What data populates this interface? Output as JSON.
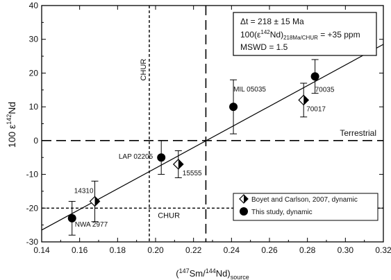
{
  "chart_data": {
    "type": "scatter",
    "title": "",
    "xlabel_parts": {
      "open": "(",
      "sup1": "147",
      "mid": "Sm/",
      "sup2": "144",
      "close": "Nd)",
      "sub": "source"
    },
    "ylabel_parts": {
      "prefix": "100 ε",
      "sup": "142",
      "suffix": "Nd"
    },
    "xlim": [
      0.14,
      0.32
    ],
    "ylim": [
      -30,
      40
    ],
    "xticks": [
      "0.14",
      "0.16",
      "0.18",
      "0.20",
      "0.22",
      "0.24",
      "0.26",
      "0.28",
      "0.30",
      "0.32"
    ],
    "yticks": [
      "-30",
      "-20",
      "-10",
      "0",
      "10",
      "20",
      "30",
      "40"
    ],
    "grid": false,
    "annotation_box": {
      "line1": "Δt = 218 ± 15 Ma",
      "line2_parts": {
        "a": "100(ε",
        "sup": "142",
        "b": "Nd)",
        "sub": "218Ma/CHUR",
        "c": " = +35 ppm"
      },
      "line3": "MSWD = 1.5"
    },
    "reference_lines": {
      "chur_x": 0.1967,
      "chur_y": -20,
      "terrestrial_x": 0.2265,
      "terrestrial_y": 0,
      "chur_label_vertical": "CHUR",
      "chur_label_horizontal": "CHUR",
      "terrestrial_label": "Terrestrial"
    },
    "regression_line": {
      "x": [
        0.14,
        0.32
      ],
      "y": [
        -26.5,
        28.5
      ]
    },
    "series": [
      {
        "name": "Boyet and Carlson, 2007, dynamic",
        "marker": "diamond",
        "points": [
          {
            "label": "14310",
            "x": 0.168,
            "y": -18,
            "err": 6
          },
          {
            "label": "15555",
            "x": 0.212,
            "y": -7,
            "err": 4
          },
          {
            "label": "70017",
            "x": 0.278,
            "y": 12,
            "err": 5
          }
        ]
      },
      {
        "name": "This study, dynamic",
        "marker": "circle",
        "points": [
          {
            "label": "NWA 2977",
            "x": 0.156,
            "y": -23,
            "err": 5
          },
          {
            "label": "LAP 02205",
            "x": 0.203,
            "y": -5,
            "err": 5
          },
          {
            "label": "MIL 05035",
            "x": 0.241,
            "y": 10,
            "err": 8
          },
          {
            "label": "70035",
            "x": 0.284,
            "y": 19,
            "err": 5
          }
        ]
      }
    ],
    "legend_position": "bottom-right"
  }
}
